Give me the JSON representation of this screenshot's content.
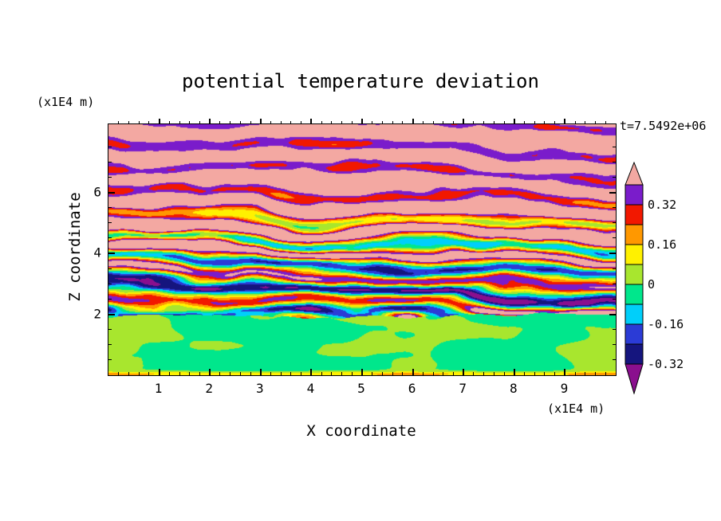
{
  "title": "potential temperature deviation",
  "time_label": "t=7.5492e+06",
  "axes": {
    "x": {
      "label": "X coordinate",
      "unit": "(x1E4 m)",
      "range": [
        0,
        10
      ],
      "major_ticks": [
        1,
        2,
        3,
        4,
        5,
        6,
        7,
        8,
        9
      ],
      "minor_step": 0.2
    },
    "z": {
      "label": "Z coordinate",
      "unit": "(x1E4 m)",
      "range": [
        0,
        8.24
      ],
      "major_ticks": [
        2,
        4,
        6
      ],
      "minor_step": 0.5
    }
  },
  "colorbar": {
    "top_arrow_color": "#F3A8A2",
    "bottom_arrow_color": "#8A0F8E",
    "bands": [
      {
        "color": "#7A1CCB",
        "boundary_label": "0.32"
      },
      {
        "color": "#F21800",
        "boundary_label": ""
      },
      {
        "color": "#FF9800",
        "boundary_label": "0.16"
      },
      {
        "color": "#FFF100",
        "boundary_label": ""
      },
      {
        "color": "#A8E62E",
        "boundary_label": "0"
      },
      {
        "color": "#00E78C",
        "boundary_label": ""
      },
      {
        "color": "#00CFFA",
        "boundary_label": "-0.16"
      },
      {
        "color": "#2B3BD6",
        "boundary_label": ""
      },
      {
        "color": "#15157E",
        "boundary_label": "-0.32"
      }
    ]
  },
  "chart_data": {
    "type": "heatmap",
    "title": "potential temperature deviation",
    "xlabel": "X coordinate (x1E4 m)",
    "ylabel": "Z coordinate (x1E4 m)",
    "x_range": [
      0,
      10
    ],
    "z_range": [
      0,
      8.24
    ],
    "time_annotation": "t=7.5492e+06",
    "contour_interval": 0.08,
    "colorbar_labels": [
      "0.32",
      "0.16",
      "0",
      "-0.16",
      "-0.32"
    ],
    "colormap": [
      {
        "min": 0.4,
        "color": "#F3A8A2"
      },
      {
        "min": 0.32,
        "color": "#7A1CCB"
      },
      {
        "min": 0.24,
        "color": "#F21800"
      },
      {
        "min": 0.16,
        "color": "#FF9800"
      },
      {
        "min": 0.08,
        "color": "#FFF100"
      },
      {
        "min": 0.0,
        "color": "#A8E62E"
      },
      {
        "min": -0.08,
        "color": "#00E78C"
      },
      {
        "min": -0.16,
        "color": "#00CFFA"
      },
      {
        "min": -0.24,
        "color": "#2B3BD6"
      },
      {
        "min": -0.32,
        "color": "#15157E"
      },
      {
        "min": -999,
        "color": "#8A0F8E"
      }
    ],
    "structure": {
      "lower_region": "well-mixed layer below z ~ 2 (x1E4 m): deviation near zero, green with yellow-green swirls",
      "middle_region": "strongly turbulent layered zone 2 < z < 4.5: thin braided layers spanning -0.32 to +0.24 (navy/blue/cyan/green/yellow/orange)",
      "upper_region": "stably stratified wavy layers above z ~ 5: values 0.3 to 0.5, alternating salmon and purple bands with red/yellow filaments"
    },
    "field_model": {
      "seed": 7,
      "interface_z": 1.92,
      "interface_wiggle": 0.25,
      "lower": {
        "base": -0.02,
        "amp": 0.09,
        "fx": 0.5,
        "fz": 0.8,
        "clamp_min": -0.078
      },
      "upper": {
        "kz": 8.0,
        "warp": 3.4,
        "warp_fx": 0.5,
        "warp_fz": 0.85,
        "x_tilt": 0.3,
        "base_min": -0.03,
        "base_gain": 0.47,
        "base_z0": 2.2,
        "base_z1": 6.0,
        "amp_max": 0.34,
        "amp_drop": 0.21,
        "amp_z0": 4.6,
        "amp_z1": 6.4,
        "noise_amp": 0.1,
        "noise_fx": 1.5,
        "noise_fz": 1.3
      },
      "bottom_stripe": {
        "amp": 0.18,
        "center": 0.03,
        "width": 0.09
      },
      "interface_stripe": {
        "amp": 0.22,
        "offset": 0.1,
        "width": 0.14
      }
    }
  }
}
